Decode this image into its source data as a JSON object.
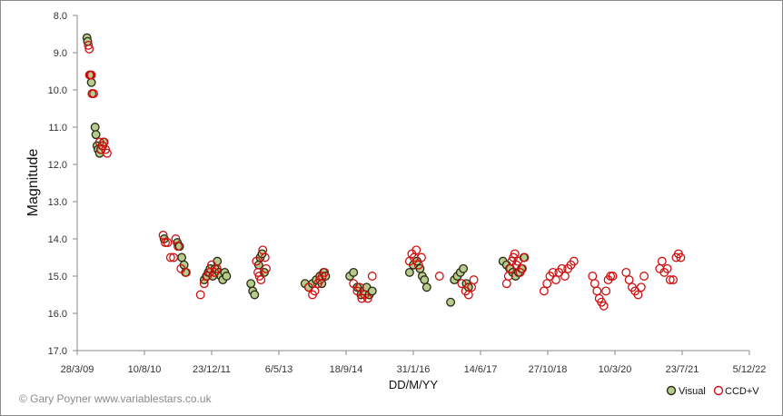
{
  "chart_data": {
    "type": "scatter",
    "xlabel": "DD/M/YY",
    "ylabel": "Magnitude",
    "ylim": [
      8.0,
      17.0
    ],
    "y_inverted": true,
    "y_ticks": [
      "8.0",
      "9.0",
      "10.0",
      "11.0",
      "12.0",
      "13.0",
      "14.0",
      "15.0",
      "16.0",
      "17.0"
    ],
    "x_ticks": [
      "28/3/09",
      "10/8/10",
      "23/12/11",
      "6/5/13",
      "18/9/14",
      "31/1/16",
      "14/6/17",
      "27/10/18",
      "10/3/20",
      "23/7/21",
      "5/12/22"
    ],
    "credit": "© Gary Poyner  www.variablestars.co.uk",
    "grid": false,
    "legend_position": "bottom-right",
    "colors": {
      "visual_fill": "#b5cc8e",
      "visual_edge": "#2a2a12",
      "ccd_edge": "#d01010",
      "axis": "#888888"
    },
    "series": [
      {
        "name": "Visual",
        "points": [
          [
            0.26,
            8.6
          ],
          [
            0.28,
            8.7
          ],
          [
            0.35,
            9.6
          ],
          [
            0.38,
            9.8
          ],
          [
            0.4,
            10.1
          ],
          [
            0.48,
            11.0
          ],
          [
            0.5,
            11.2
          ],
          [
            0.53,
            11.5
          ],
          [
            0.56,
            11.6
          ],
          [
            0.6,
            11.7
          ],
          [
            0.63,
            11.6
          ],
          [
            0.67,
            11.5
          ],
          [
            0.71,
            11.4
          ],
          [
            2.33,
            14.0
          ],
          [
            2.68,
            14.1
          ],
          [
            2.74,
            14.2
          ],
          [
            2.8,
            14.5
          ],
          [
            2.86,
            14.7
          ],
          [
            2.9,
            14.9
          ],
          [
            3.4,
            15.1
          ],
          [
            3.46,
            15.0
          ],
          [
            3.51,
            14.9
          ],
          [
            3.56,
            14.8
          ],
          [
            3.63,
            15.0
          ],
          [
            3.69,
            14.8
          ],
          [
            3.75,
            14.6
          ],
          [
            3.8,
            14.9
          ],
          [
            3.85,
            15.0
          ],
          [
            3.9,
            15.1
          ],
          [
            3.95,
            14.9
          ],
          [
            4.0,
            15.0
          ],
          [
            4.65,
            15.2
          ],
          [
            4.7,
            15.4
          ],
          [
            4.75,
            15.5
          ],
          [
            4.86,
            14.7
          ],
          [
            4.9,
            14.5
          ],
          [
            4.95,
            14.4
          ],
          [
            5.01,
            14.9
          ],
          [
            6.1,
            15.2
          ],
          [
            6.2,
            15.3
          ],
          [
            6.3,
            15.2
          ],
          [
            6.4,
            15.1
          ],
          [
            6.5,
            15.0
          ],
          [
            6.55,
            15.2
          ],
          [
            6.6,
            14.9
          ],
          [
            6.65,
            15.0
          ],
          [
            7.3,
            15.0
          ],
          [
            7.4,
            14.9
          ],
          [
            7.5,
            15.3
          ],
          [
            7.6,
            15.5
          ],
          [
            7.68,
            15.4
          ],
          [
            7.75,
            15.3
          ],
          [
            7.82,
            15.5
          ],
          [
            7.9,
            15.4
          ],
          [
            8.9,
            14.9
          ],
          [
            9.0,
            14.7
          ],
          [
            9.1,
            14.6
          ],
          [
            9.18,
            14.8
          ],
          [
            9.24,
            15.0
          ],
          [
            9.3,
            15.1
          ],
          [
            9.36,
            15.3
          ],
          [
            10.0,
            15.7
          ],
          [
            10.1,
            15.1
          ],
          [
            10.18,
            15.0
          ],
          [
            10.26,
            14.9
          ],
          [
            10.34,
            14.8
          ],
          [
            10.42,
            15.2
          ],
          [
            10.48,
            15.3
          ],
          [
            11.4,
            14.6
          ],
          [
            11.5,
            14.7
          ],
          [
            11.58,
            14.8
          ],
          [
            11.66,
            14.9
          ],
          [
            11.74,
            15.0
          ],
          [
            11.82,
            14.9
          ],
          [
            11.9,
            14.8
          ],
          [
            11.96,
            14.5
          ]
        ]
      },
      {
        "name": "CCD+V",
        "points": [
          [
            0.3,
            8.8
          ],
          [
            0.32,
            8.9
          ],
          [
            0.33,
            9.6
          ],
          [
            0.38,
            9.6
          ],
          [
            0.4,
            10.1
          ],
          [
            0.44,
            10.1
          ],
          [
            0.6,
            11.4
          ],
          [
            0.64,
            11.6
          ],
          [
            0.68,
            11.5
          ],
          [
            0.72,
            11.4
          ],
          [
            0.76,
            11.6
          ],
          [
            0.8,
            11.7
          ],
          [
            2.3,
            13.9
          ],
          [
            2.36,
            14.1
          ],
          [
            2.42,
            14.1
          ],
          [
            2.5,
            14.5
          ],
          [
            2.58,
            14.5
          ],
          [
            2.64,
            14.0
          ],
          [
            2.7,
            14.2
          ],
          [
            2.78,
            14.8
          ],
          [
            2.92,
            14.9
          ],
          [
            3.3,
            15.5
          ],
          [
            3.4,
            15.2
          ],
          [
            3.48,
            15.0
          ],
          [
            3.55,
            14.9
          ],
          [
            3.6,
            14.7
          ],
          [
            3.68,
            14.9
          ],
          [
            3.74,
            14.8
          ],
          [
            4.8,
            14.6
          ],
          [
            4.84,
            14.9
          ],
          [
            4.88,
            15.0
          ],
          [
            4.92,
            15.1
          ],
          [
            4.97,
            14.3
          ],
          [
            5.03,
            14.5
          ],
          [
            5.06,
            14.8
          ],
          [
            6.2,
            15.3
          ],
          [
            6.3,
            15.5
          ],
          [
            6.36,
            15.4
          ],
          [
            6.44,
            15.2
          ],
          [
            6.5,
            15.1
          ],
          [
            6.56,
            15.0
          ],
          [
            6.62,
            14.9
          ],
          [
            7.4,
            15.2
          ],
          [
            7.5,
            15.4
          ],
          [
            7.56,
            15.3
          ],
          [
            7.62,
            15.6
          ],
          [
            7.7,
            15.5
          ],
          [
            7.78,
            15.6
          ],
          [
            7.9,
            15.0
          ],
          [
            8.9,
            14.6
          ],
          [
            8.96,
            14.4
          ],
          [
            9.02,
            14.5
          ],
          [
            9.08,
            14.3
          ],
          [
            9.14,
            14.7
          ],
          [
            9.22,
            14.5
          ],
          [
            9.7,
            15.0
          ],
          [
            10.3,
            15.2
          ],
          [
            10.4,
            15.4
          ],
          [
            10.48,
            15.5
          ],
          [
            10.56,
            15.3
          ],
          [
            10.62,
            15.1
          ],
          [
            11.5,
            15.2
          ],
          [
            11.55,
            15.0
          ],
          [
            11.6,
            14.8
          ],
          [
            11.64,
            14.6
          ],
          [
            11.68,
            14.5
          ],
          [
            11.72,
            14.4
          ],
          [
            11.76,
            14.7
          ],
          [
            11.8,
            14.6
          ],
          [
            11.86,
            14.9
          ],
          [
            11.92,
            14.8
          ],
          [
            11.98,
            14.5
          ],
          [
            12.5,
            15.4
          ],
          [
            12.58,
            15.2
          ],
          [
            12.66,
            15.0
          ],
          [
            12.74,
            14.9
          ],
          [
            12.82,
            15.1
          ],
          [
            12.9,
            14.9
          ],
          [
            12.98,
            14.8
          ],
          [
            13.06,
            15.0
          ],
          [
            13.14,
            14.8
          ],
          [
            13.22,
            14.7
          ],
          [
            13.3,
            14.6
          ],
          [
            13.8,
            15.0
          ],
          [
            13.86,
            15.2
          ],
          [
            13.92,
            15.4
          ],
          [
            13.98,
            15.6
          ],
          [
            14.04,
            15.7
          ],
          [
            14.1,
            15.8
          ],
          [
            14.16,
            15.4
          ],
          [
            14.22,
            15.1
          ],
          [
            14.28,
            15.0
          ],
          [
            14.34,
            15.0
          ],
          [
            14.7,
            14.9
          ],
          [
            14.78,
            15.1
          ],
          [
            14.86,
            15.3
          ],
          [
            14.94,
            15.4
          ],
          [
            15.02,
            15.5
          ],
          [
            15.1,
            15.3
          ],
          [
            15.18,
            15.0
          ],
          [
            15.6,
            14.8
          ],
          [
            15.66,
            14.6
          ],
          [
            15.72,
            14.9
          ],
          [
            15.8,
            14.8
          ],
          [
            15.88,
            15.1
          ],
          [
            15.96,
            15.1
          ],
          [
            16.04,
            14.5
          ],
          [
            16.1,
            14.4
          ],
          [
            16.16,
            14.5
          ]
        ]
      }
    ],
    "xlim": [
      0,
      18
    ]
  }
}
